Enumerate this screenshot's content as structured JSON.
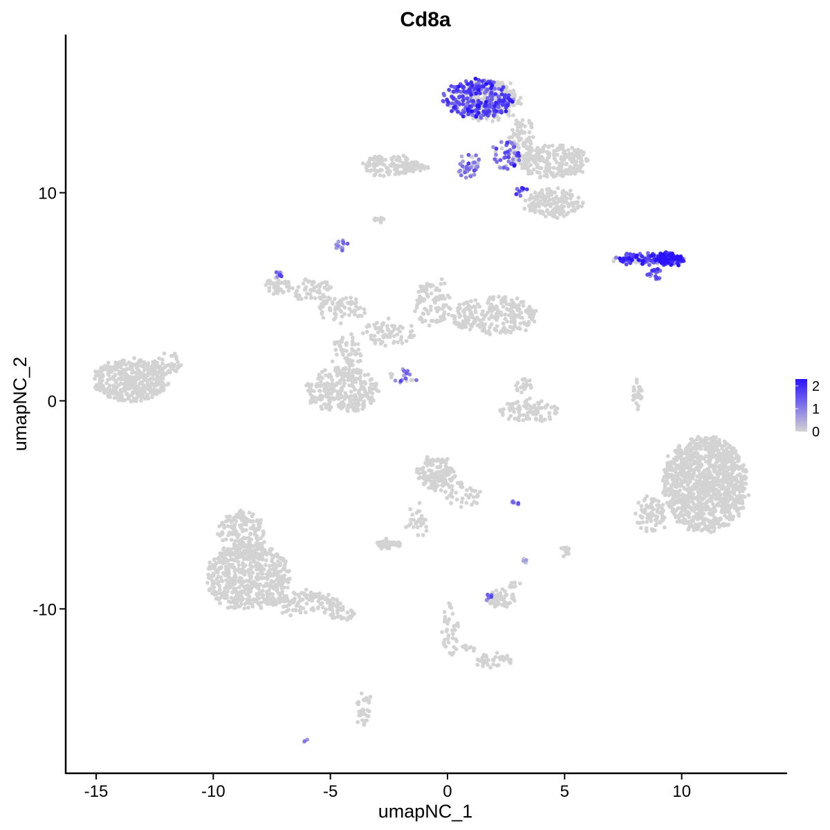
{
  "chart_data": {
    "type": "scatter",
    "title": "Cd8a",
    "xlabel": "umapNC_1",
    "ylabel": "umapNC_2",
    "xlim": [
      -16.3,
      14.5
    ],
    "ylim": [
      -17.9,
      17.6
    ],
    "x_ticks": [
      -15,
      -10,
      -5,
      0,
      5,
      10
    ],
    "y_ticks": [
      10,
      0,
      -10
    ],
    "x_tick_labels": [
      "-15",
      "-10",
      "-5",
      "0",
      "5",
      "10"
    ],
    "y_tick_labels": [
      "10",
      "0",
      "-10"
    ],
    "grid": false,
    "colors": {
      "low": "#d3d3d3",
      "high": "#2a13ff"
    },
    "legend": {
      "position": "right",
      "labels": [
        "2",
        "1",
        "0"
      ],
      "values": [
        2,
        1,
        0
      ],
      "max": 2.3
    },
    "clusters": [
      {
        "cx": -13.5,
        "cy": 1.0,
        "rx": 1.6,
        "ry": 1.0,
        "n": 420,
        "expr": 0
      },
      {
        "cx": -12.0,
        "cy": 1.8,
        "rx": 0.6,
        "ry": 0.5,
        "n": 40,
        "expr": 0
      },
      {
        "cx": -8.5,
        "cy": -8.5,
        "rx": 1.8,
        "ry": 1.6,
        "n": 520,
        "expr": 0
      },
      {
        "cx": -8.8,
        "cy": -6.5,
        "rx": 1.0,
        "ry": 1.2,
        "n": 180,
        "expr": 0
      },
      {
        "cx": -6.2,
        "cy": -9.7,
        "rx": 1.7,
        "ry": 0.5,
        "n": 120,
        "expr": 0
      },
      {
        "cx": -4.6,
        "cy": -10.2,
        "rx": 0.7,
        "ry": 0.3,
        "n": 30,
        "expr": 0
      },
      {
        "cx": -2.4,
        "cy": 11.3,
        "rx": 1.2,
        "ry": 0.5,
        "n": 130,
        "expr": 0
      },
      {
        "cx": -1.3,
        "cy": 11.2,
        "rx": 0.6,
        "ry": 0.2,
        "n": 20,
        "expr": 0
      },
      {
        "cx": -3.0,
        "cy": 8.7,
        "rx": 0.25,
        "ry": 0.15,
        "n": 10,
        "expr": 0
      },
      {
        "cx": 1.3,
        "cy": 14.5,
        "rx": 1.5,
        "ry": 0.9,
        "n": 300,
        "expr": 1.5
      },
      {
        "cx": 1.8,
        "cy": 14.4,
        "rx": 1.3,
        "ry": 1.0,
        "n": 200,
        "expr": 0
      },
      {
        "cx": 2.5,
        "cy": 11.8,
        "rx": 0.6,
        "ry": 0.7,
        "n": 60,
        "expr": 1.3
      },
      {
        "cx": 0.9,
        "cy": 11.3,
        "rx": 0.5,
        "ry": 0.6,
        "n": 40,
        "expr": 1.0
      },
      {
        "cx": 4.5,
        "cy": 11.5,
        "rx": 1.5,
        "ry": 0.8,
        "n": 220,
        "expr": 0
      },
      {
        "cx": 4.5,
        "cy": 9.5,
        "rx": 1.2,
        "ry": 0.7,
        "n": 150,
        "expr": 0
      },
      {
        "cx": 3.2,
        "cy": 12.5,
        "rx": 0.5,
        "ry": 1.2,
        "n": 80,
        "expr": 0
      },
      {
        "cx": 3.1,
        "cy": 10.0,
        "rx": 0.3,
        "ry": 0.2,
        "n": 10,
        "expr": 1.6
      },
      {
        "cx": 8.5,
        "cy": 6.8,
        "rx": 1.4,
        "ry": 0.25,
        "n": 120,
        "expr": 1.8
      },
      {
        "cx": 9.5,
        "cy": 6.8,
        "rx": 0.6,
        "ry": 0.3,
        "n": 100,
        "expr": 2.2
      },
      {
        "cx": 8.9,
        "cy": 6.1,
        "rx": 0.3,
        "ry": 0.3,
        "n": 20,
        "expr": 1.4
      },
      {
        "cx": -7.3,
        "cy": 5.5,
        "rx": 0.6,
        "ry": 0.4,
        "n": 40,
        "expr": 0
      },
      {
        "cx": -7.2,
        "cy": 6.1,
        "rx": 0.2,
        "ry": 0.15,
        "n": 8,
        "expr": 1.3
      },
      {
        "cx": -5.8,
        "cy": 5.3,
        "rx": 0.9,
        "ry": 0.5,
        "n": 60,
        "expr": 0
      },
      {
        "cx": -4.5,
        "cy": 4.4,
        "rx": 1.0,
        "ry": 0.6,
        "n": 70,
        "expr": 0
      },
      {
        "cx": -4.5,
        "cy": 7.4,
        "rx": 0.25,
        "ry": 0.3,
        "n": 15,
        "expr": 0.9
      },
      {
        "cx": -4.3,
        "cy": 2.0,
        "rx": 0.6,
        "ry": 1.3,
        "n": 80,
        "expr": 0
      },
      {
        "cx": -4.5,
        "cy": 0.5,
        "rx": 1.5,
        "ry": 1.1,
        "n": 260,
        "expr": 0
      },
      {
        "cx": -2.5,
        "cy": 3.3,
        "rx": 1.2,
        "ry": 0.6,
        "n": 70,
        "expr": 0
      },
      {
        "cx": -0.6,
        "cy": 4.8,
        "rx": 0.8,
        "ry": 1.2,
        "n": 90,
        "expr": 0
      },
      {
        "cx": 2.0,
        "cy": 4.1,
        "rx": 1.8,
        "ry": 0.9,
        "n": 230,
        "expr": 0
      },
      {
        "cx": -1.9,
        "cy": 1.2,
        "rx": 0.6,
        "ry": 0.4,
        "n": 20,
        "expr": 0.8
      },
      {
        "cx": 3.5,
        "cy": -0.5,
        "rx": 1.3,
        "ry": 0.5,
        "n": 90,
        "expr": 0
      },
      {
        "cx": 3.3,
        "cy": 0.7,
        "rx": 0.4,
        "ry": 0.4,
        "n": 20,
        "expr": 0
      },
      {
        "cx": 8.1,
        "cy": 0.3,
        "rx": 0.2,
        "ry": 0.8,
        "n": 25,
        "expr": 0
      },
      {
        "cx": 11.0,
        "cy": -4.0,
        "rx": 1.8,
        "ry": 2.3,
        "n": 1100,
        "expr": 0
      },
      {
        "cx": 8.7,
        "cy": -5.5,
        "rx": 0.6,
        "ry": 0.9,
        "n": 80,
        "expr": 0
      },
      {
        "cx": -0.5,
        "cy": -3.5,
        "rx": 0.8,
        "ry": 0.8,
        "n": 140,
        "expr": 0
      },
      {
        "cx": 0.7,
        "cy": -4.5,
        "rx": 0.8,
        "ry": 0.6,
        "n": 40,
        "expr": 0
      },
      {
        "cx": -1.3,
        "cy": -5.8,
        "rx": 0.4,
        "ry": 1.0,
        "n": 30,
        "expr": 0
      },
      {
        "cx": -2.5,
        "cy": -6.9,
        "rx": 0.5,
        "ry": 0.2,
        "n": 50,
        "expr": 0
      },
      {
        "cx": 2.3,
        "cy": -9.5,
        "rx": 0.6,
        "ry": 0.4,
        "n": 50,
        "expr": 0
      },
      {
        "cx": 1.8,
        "cy": -9.4,
        "rx": 0.2,
        "ry": 0.2,
        "n": 6,
        "expr": 1.5
      },
      {
        "cx": 2.8,
        "cy": -8.8,
        "rx": 0.2,
        "ry": 0.2,
        "n": 8,
        "expr": 0
      },
      {
        "cx": 0.1,
        "cy": -11.0,
        "rx": 0.3,
        "ry": 1.3,
        "n": 40,
        "expr": 0
      },
      {
        "cx": 2.0,
        "cy": -12.5,
        "rx": 0.8,
        "ry": 0.3,
        "n": 40,
        "expr": 0
      },
      {
        "cx": 0.8,
        "cy": -11.9,
        "rx": 0.4,
        "ry": 0.2,
        "n": 10,
        "expr": 0
      },
      {
        "cx": -3.6,
        "cy": -14.8,
        "rx": 0.3,
        "ry": 0.8,
        "n": 35,
        "expr": 0
      },
      {
        "cx": 5.0,
        "cy": -7.3,
        "rx": 0.15,
        "ry": 0.4,
        "n": 12,
        "expr": 0
      },
      {
        "cx": 3.3,
        "cy": -7.7,
        "rx": 0.1,
        "ry": 0.2,
        "n": 5,
        "expr": 1.0
      },
      {
        "cx": 2.9,
        "cy": -4.9,
        "rx": 0.2,
        "ry": 0.1,
        "n": 8,
        "expr": 1.2
      },
      {
        "cx": -6.1,
        "cy": -16.3,
        "rx": 0.1,
        "ry": 0.1,
        "n": 3,
        "expr": 0.9
      }
    ]
  }
}
